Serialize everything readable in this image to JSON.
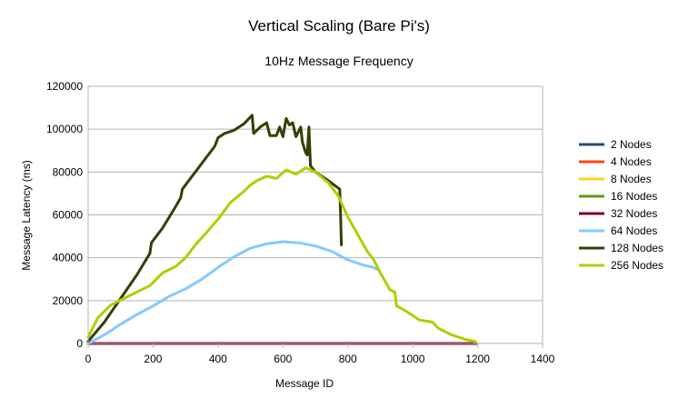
{
  "chart_data": {
    "type": "line",
    "title": "Vertical Scaling (Bare Pi's)",
    "subtitle": "10Hz  Message Frequency",
    "xlabel": "Message ID",
    "ylabel": "Message Latency (ms)",
    "xlim": [
      0,
      1400
    ],
    "ylim": [
      0,
      120000
    ],
    "x_ticks": [
      "0",
      "200",
      "400",
      "600",
      "800",
      "1000",
      "1200",
      "1400"
    ],
    "y_ticks": [
      "0",
      "20000",
      "40000",
      "60000",
      "80000",
      "100000",
      "120000"
    ],
    "grid": "horizontal",
    "legend_position": "right",
    "series": [
      {
        "name": "2 Nodes",
        "color": "#1f4e79",
        "points": [
          [
            0,
            0
          ],
          [
            1195,
            0
          ]
        ]
      },
      {
        "name": "4 Nodes",
        "color": "#ff420e",
        "points": [
          [
            0,
            0
          ],
          [
            1195,
            0
          ]
        ]
      },
      {
        "name": "8 Nodes",
        "color": "#ffd320",
        "points": [
          [
            0,
            0
          ],
          [
            1195,
            0
          ]
        ]
      },
      {
        "name": "16 Nodes",
        "color": "#579d1c",
        "points": [
          [
            0,
            0
          ],
          [
            1195,
            0
          ]
        ]
      },
      {
        "name": "32 Nodes",
        "color": "#7e0021",
        "points": [
          [
            0,
            0
          ],
          [
            1195,
            0
          ]
        ]
      },
      {
        "name": "64 Nodes",
        "color": "#83caff",
        "points": [
          [
            0,
            0
          ],
          [
            50,
            4000
          ],
          [
            100,
            9000
          ],
          [
            150,
            13500
          ],
          [
            200,
            17500
          ],
          [
            250,
            22000
          ],
          [
            300,
            25500
          ],
          [
            350,
            30000
          ],
          [
            400,
            35500
          ],
          [
            450,
            40500
          ],
          [
            500,
            44500
          ],
          [
            550,
            46500
          ],
          [
            600,
            47500
          ],
          [
            650,
            47000
          ],
          [
            700,
            45500
          ],
          [
            750,
            43000
          ],
          [
            800,
            39000
          ],
          [
            850,
            36500
          ],
          [
            880,
            35500
          ],
          [
            890,
            34500
          ]
        ]
      },
      {
        "name": "128 Nodes",
        "color": "#314004",
        "points": [
          [
            0,
            1000
          ],
          [
            50,
            10000
          ],
          [
            100,
            21000
          ],
          [
            150,
            32000
          ],
          [
            190,
            42000
          ],
          [
            195,
            47000
          ],
          [
            230,
            54000
          ],
          [
            270,
            64000
          ],
          [
            285,
            68000
          ],
          [
            290,
            72000
          ],
          [
            330,
            80000
          ],
          [
            370,
            88000
          ],
          [
            390,
            92000
          ],
          [
            400,
            96000
          ],
          [
            420,
            98000
          ],
          [
            450,
            99500
          ],
          [
            480,
            102500
          ],
          [
            505,
            106500
          ],
          [
            510,
            98000
          ],
          [
            530,
            101000
          ],
          [
            550,
            103000
          ],
          [
            560,
            97000
          ],
          [
            580,
            97000
          ],
          [
            590,
            101000
          ],
          [
            600,
            96500
          ],
          [
            610,
            105000
          ],
          [
            620,
            102000
          ],
          [
            630,
            103000
          ],
          [
            640,
            96500
          ],
          [
            655,
            101000
          ],
          [
            660,
            94000
          ],
          [
            670,
            89000
          ],
          [
            675,
            88000
          ],
          [
            680,
            101000
          ],
          [
            685,
            83000
          ],
          [
            700,
            80000
          ],
          [
            740,
            76000
          ],
          [
            775,
            72000
          ],
          [
            778,
            58000
          ],
          [
            780,
            46000
          ]
        ]
      },
      {
        "name": "256 Nodes",
        "color": "#aecf00",
        "points": [
          [
            0,
            3000
          ],
          [
            30,
            12000
          ],
          [
            70,
            18000
          ],
          [
            110,
            21000
          ],
          [
            150,
            24000
          ],
          [
            190,
            27000
          ],
          [
            230,
            33000
          ],
          [
            270,
            36000
          ],
          [
            300,
            40000
          ],
          [
            330,
            46000
          ],
          [
            360,
            51000
          ],
          [
            400,
            58000
          ],
          [
            440,
            66000
          ],
          [
            480,
            71000
          ],
          [
            500,
            74000
          ],
          [
            520,
            76000
          ],
          [
            550,
            78000
          ],
          [
            580,
            77000
          ],
          [
            610,
            81000
          ],
          [
            640,
            79000
          ],
          [
            670,
            82000
          ],
          [
            700,
            80000
          ],
          [
            740,
            75000
          ],
          [
            770,
            69000
          ],
          [
            800,
            59000
          ],
          [
            830,
            51000
          ],
          [
            860,
            43000
          ],
          [
            880,
            39000
          ],
          [
            900,
            33000
          ],
          [
            915,
            29000
          ],
          [
            930,
            25000
          ],
          [
            945,
            24000
          ],
          [
            950,
            17500
          ],
          [
            980,
            15000
          ],
          [
            1000,
            13000
          ],
          [
            1020,
            11000
          ],
          [
            1060,
            10000
          ],
          [
            1080,
            7000
          ],
          [
            1120,
            4000
          ],
          [
            1160,
            2000
          ],
          [
            1190,
            1000
          ],
          [
            1195,
            500
          ]
        ]
      }
    ]
  }
}
